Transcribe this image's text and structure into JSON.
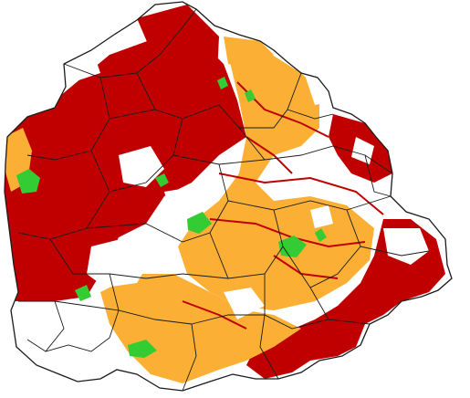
{
  "map": {
    "colors": {
      "background": "#ffffff",
      "outline": "#1a1a1a",
      "high": "#c00000",
      "medium": "#fbb035",
      "low": "#33cc33",
      "none": "#ffffff"
    },
    "classes": [
      "high",
      "medium",
      "low",
      "none"
    ]
  }
}
